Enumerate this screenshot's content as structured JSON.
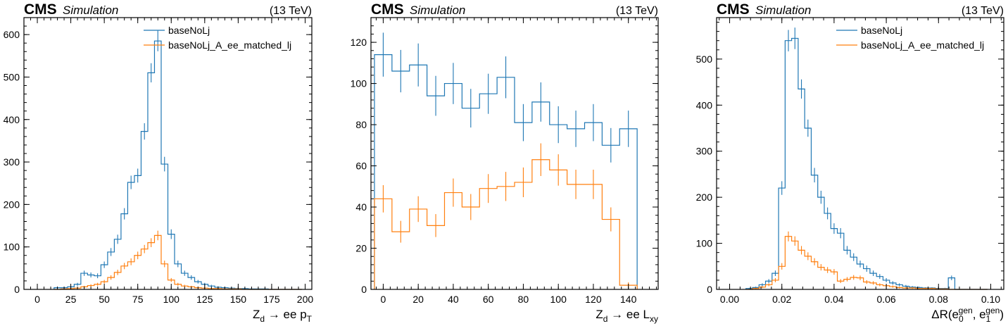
{
  "header": {
    "experiment": "CMS",
    "label": "Simulation",
    "energy": "(13 TeV)"
  },
  "colors": {
    "series0": "#1f77b4",
    "series1": "#ff7f0e"
  },
  "chart_data": [
    {
      "type": "histogram",
      "xlabel": "Z_d → ee p_T",
      "xlabel_parts": {
        "main": "Z",
        "sub1": "d",
        "mid": " → ee p",
        "sub2": "T"
      },
      "xlim": [
        -10,
        205
      ],
      "ylim": [
        0,
        640
      ],
      "xticks": [
        0,
        25,
        50,
        75,
        100,
        125,
        150,
        175,
        200
      ],
      "yticks": [
        0,
        100,
        200,
        300,
        400,
        500,
        600
      ],
      "bin_width": 5,
      "x": [
        15,
        20,
        25,
        30,
        35,
        40,
        45,
        50,
        55,
        60,
        65,
        70,
        75,
        80,
        85,
        90,
        95,
        100,
        105,
        110,
        115,
        120,
        125,
        130,
        135,
        140,
        145,
        150,
        155,
        160,
        165,
        170,
        175,
        180,
        185,
        190,
        195
      ],
      "legend_position": "upper right",
      "series": [
        {
          "name": "baseNoLj",
          "values": [
            4,
            4,
            6,
            12,
            38,
            34,
            32,
            58,
            88,
            118,
            178,
            252,
            268,
            372,
            510,
            585,
            295,
            130,
            60,
            38,
            28,
            18,
            12,
            8,
            5,
            4,
            3,
            2,
            2,
            1,
            1,
            1,
            0,
            0,
            0,
            0,
            0
          ]
        },
        {
          "name": "baseNoLj_A_ee_matched_lj",
          "values": [
            0,
            1,
            2,
            3,
            6,
            9,
            12,
            18,
            28,
            40,
            55,
            65,
            80,
            95,
            110,
            127,
            60,
            22,
            12,
            8,
            6,
            4,
            3,
            2,
            2,
            1,
            1,
            1,
            0,
            0,
            0,
            0,
            0,
            0,
            0,
            0,
            0
          ]
        }
      ]
    },
    {
      "type": "histogram",
      "xlabel": "Z_d → ee L_xy",
      "xlabel_parts": {
        "main": "Z",
        "sub1": "d",
        "mid": " → ee L",
        "sub2": "xy"
      },
      "xlim": [
        -7,
        157
      ],
      "ylim": [
        0,
        132
      ],
      "xticks": [
        0,
        20,
        40,
        60,
        80,
        100,
        120,
        140
      ],
      "yticks": [
        0,
        20,
        40,
        60,
        80,
        100,
        120
      ],
      "bin_width": 10,
      "x": [
        0,
        10,
        20,
        30,
        40,
        50,
        60,
        70,
        80,
        90,
        100,
        110,
        120,
        130,
        140
      ],
      "legend_position": "none",
      "series": [
        {
          "name": "baseNoLj",
          "values": [
            114,
            106,
            109,
            94,
            100,
            88,
            95,
            103,
            81,
            91,
            80,
            78,
            81,
            70,
            78
          ]
        },
        {
          "name": "baseNoLj_A_ee_matched_lj",
          "values": [
            44,
            28,
            39,
            31,
            47,
            40,
            49,
            50,
            52,
            63,
            58,
            51,
            51,
            34,
            2
          ]
        }
      ]
    },
    {
      "type": "histogram",
      "xlabel": "ΔR(e_0^gen, e_1^gen)",
      "xlabel_parts": {
        "pre": "ΔR(e",
        "s0": "0",
        "sup": "gen",
        "comma": ", e",
        "s1": "1",
        "close": ")"
      },
      "xlim": [
        -0.005,
        0.105
      ],
      "ylim": [
        0,
        590
      ],
      "xticks": [
        0.0,
        0.02,
        0.04,
        0.06,
        0.08,
        0.1
      ],
      "ytick_labels_decimals": 2,
      "yticks": [
        0,
        100,
        200,
        300,
        400,
        500
      ],
      "bin_width": 0.0025,
      "x": [
        0.0075,
        0.01,
        0.0125,
        0.015,
        0.0175,
        0.02,
        0.0225,
        0.025,
        0.0275,
        0.03,
        0.0325,
        0.035,
        0.0375,
        0.04,
        0.0425,
        0.045,
        0.0475,
        0.05,
        0.0525,
        0.055,
        0.0575,
        0.06,
        0.0625,
        0.065,
        0.0675,
        0.07,
        0.0725,
        0.075,
        0.0775,
        0.08,
        0.0825,
        0.085,
        0.0875,
        0.09,
        0.0925,
        0.095,
        0.0975
      ],
      "legend_position": "upper right",
      "series": [
        {
          "name": "baseNoLj",
          "values": [
            2,
            4,
            10,
            18,
            35,
            220,
            540,
            545,
            435,
            350,
            248,
            200,
            165,
            132,
            122,
            85,
            70,
            55,
            45,
            35,
            28,
            20,
            14,
            10,
            7,
            5,
            4,
            3,
            3,
            2,
            2,
            25,
            0,
            0,
            0,
            0,
            0
          ]
        },
        {
          "name": "baseNoLj_A_ee_matched_lj",
          "values": [
            0,
            2,
            5,
            10,
            20,
            50,
            115,
            105,
            85,
            72,
            60,
            48,
            42,
            38,
            18,
            22,
            26,
            25,
            16,
            14,
            10,
            8,
            6,
            4,
            3,
            3,
            2,
            2,
            2,
            1,
            1,
            0,
            0,
            0,
            0,
            0,
            0
          ]
        }
      ]
    }
  ]
}
